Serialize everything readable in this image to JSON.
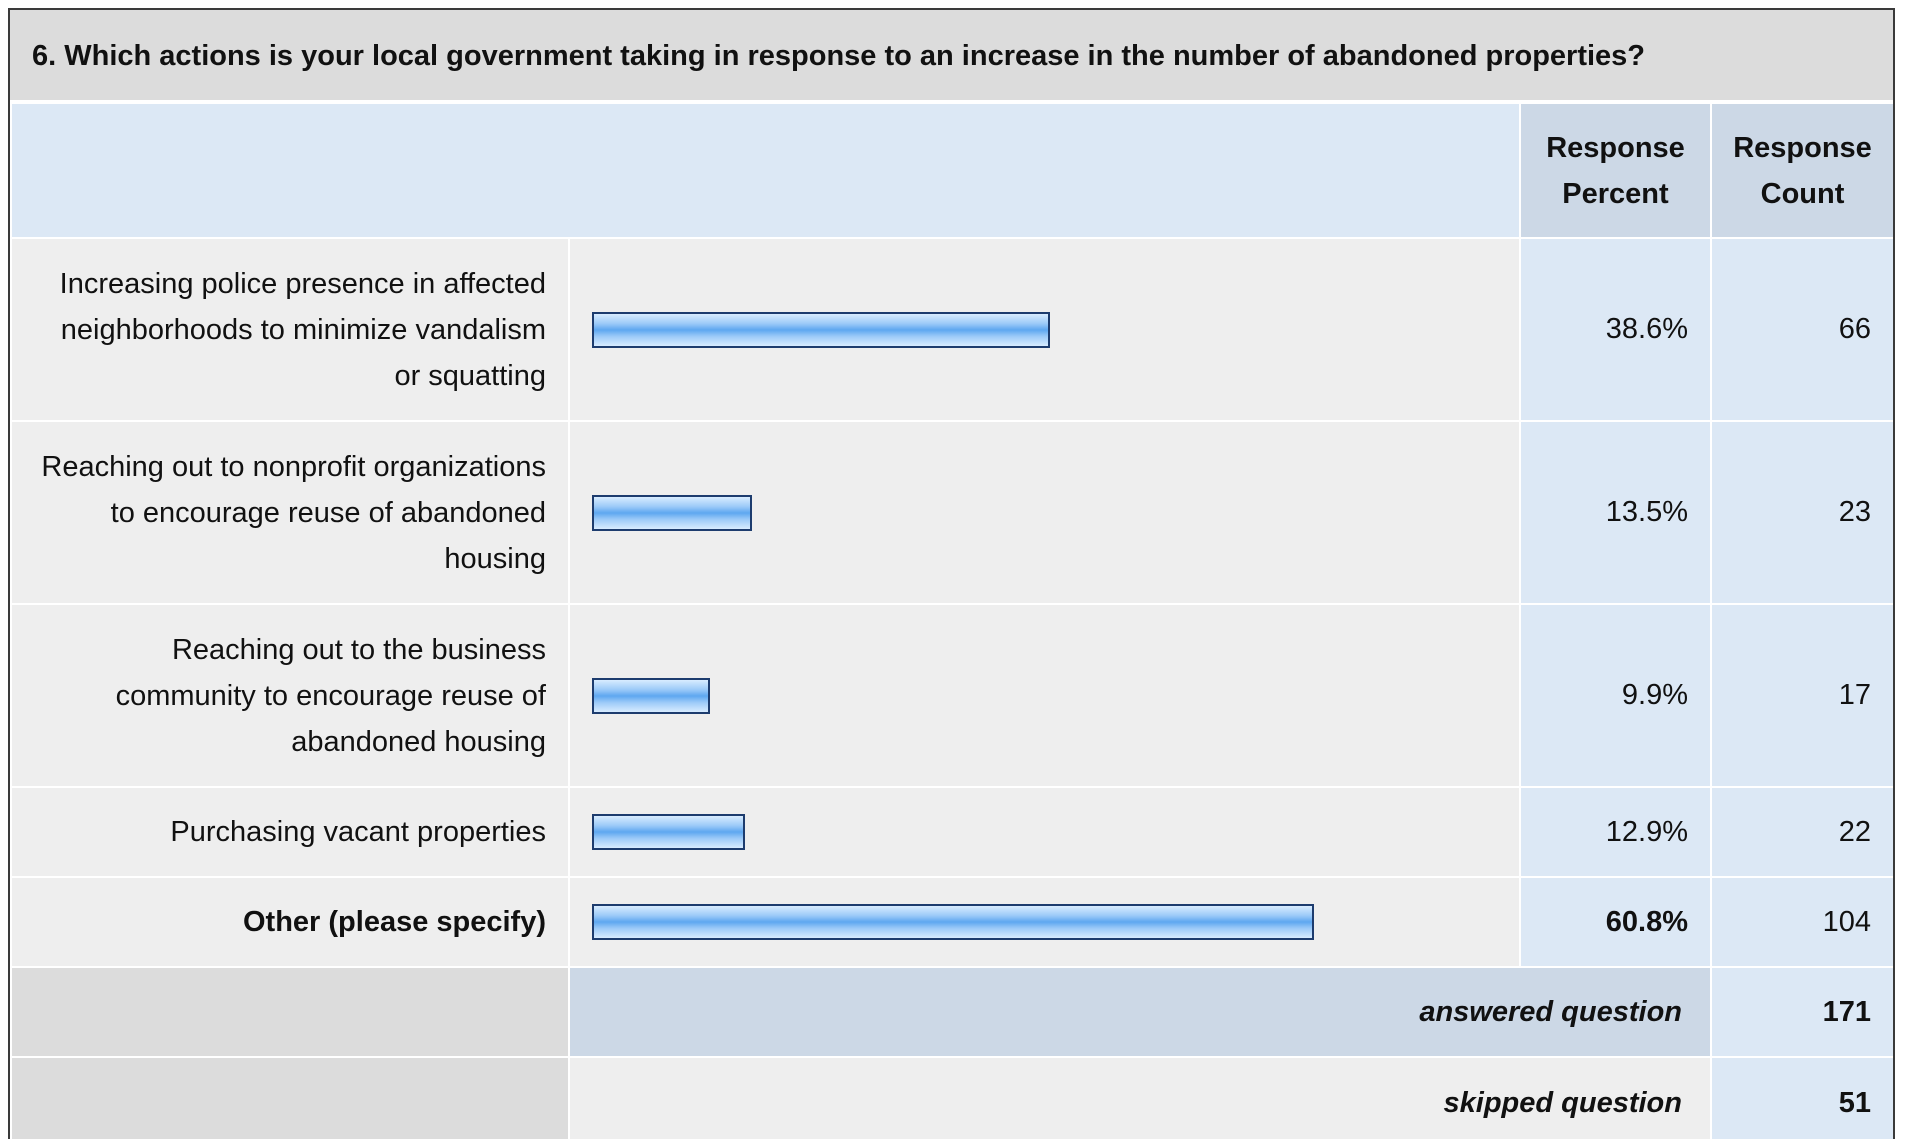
{
  "question": {
    "title": "6. Which actions is your local government taking in response to an increase in the number of abandoned properties?"
  },
  "header": {
    "percent_label": "Response Percent",
    "count_label": "Response Count"
  },
  "chart_data": {
    "type": "bar",
    "orientation": "horizontal",
    "categories": [
      "Increasing police presence in affected neighborhoods to minimize vandalism or squatting",
      "Reaching out to nonprofit organizations to encourage reuse of abandoned housing",
      "Reaching out to the business community to encourage reuse of abandoned housing",
      "Purchasing vacant properties",
      "Other (please specify)"
    ],
    "series": [
      {
        "name": "Response Percent",
        "values": [
          38.6,
          13.5,
          9.9,
          12.9,
          60.8
        ]
      },
      {
        "name": "Response Count",
        "values": [
          66,
          23,
          17,
          22,
          104
        ]
      }
    ],
    "xlim": [
      0,
      100
    ],
    "grid": false
  },
  "rows": [
    {
      "label": "Increasing police presence in affected neighborhoods to minimize vandalism or squatting",
      "percent": 38.6,
      "percent_text": "38.6%",
      "count": "66",
      "bold": false
    },
    {
      "label": "Reaching out to nonprofit organizations to encourage reuse of abandoned housing",
      "percent": 13.5,
      "percent_text": "13.5%",
      "count": "23",
      "bold": false
    },
    {
      "label": "Reaching out to the business community to encourage reuse of abandoned housing",
      "percent": 9.9,
      "percent_text": "9.9%",
      "count": "17",
      "bold": false
    },
    {
      "label": "Purchasing vacant properties",
      "percent": 12.9,
      "percent_text": "12.9%",
      "count": "22",
      "bold": false
    },
    {
      "label": "Other (please specify)",
      "percent": 60.8,
      "percent_text": "60.8%",
      "count": "104",
      "bold": true
    }
  ],
  "summary": {
    "answered_label": "answered question",
    "answered_value": "171",
    "skipped_label": "skipped question",
    "skipped_value": "51"
  },
  "colors": {
    "title_background": "#dcdcdc",
    "header_background": "#dce8f5",
    "header_column_background": "#ccd8e6",
    "row_background": "#eeeeee",
    "bar_fill": "#5ea7f0",
    "bar_border": "#1d3c6e"
  }
}
